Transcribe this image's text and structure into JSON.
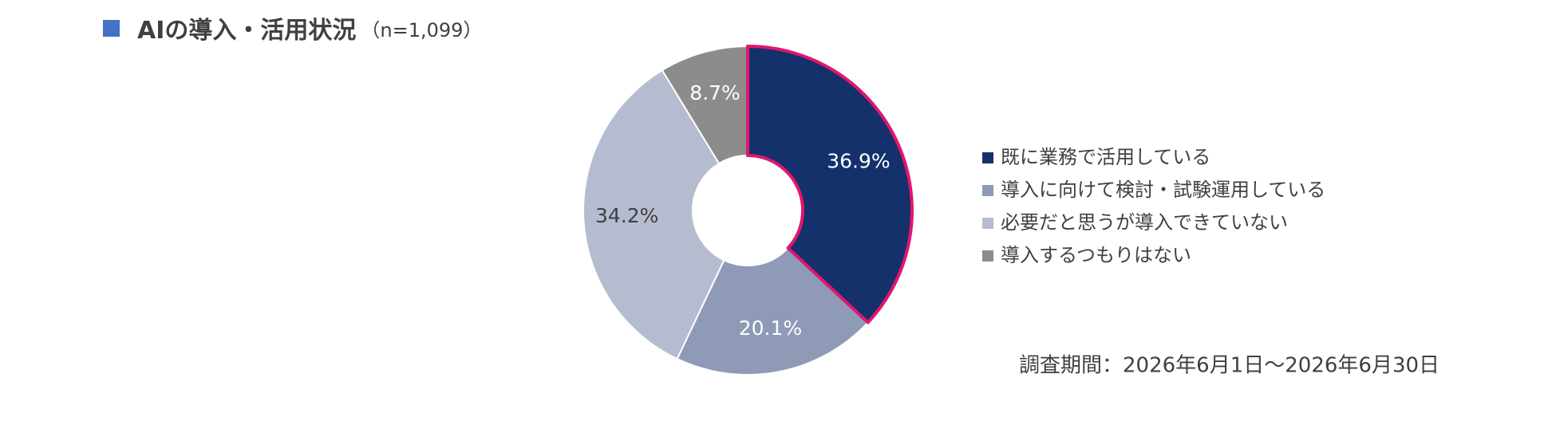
{
  "chart_data": {
    "type": "donut",
    "title": "AIの導入・活用状況",
    "subtitle": "（n=1,099）",
    "categories": [
      "既に業務で活用している",
      "導入に向けて検討・試験運用している",
      "必要だと思うが導入できていない",
      "導入するつもりはない"
    ],
    "values": [
      36.9,
      20.1,
      34.2,
      8.7
    ],
    "value_labels": [
      "36.9%",
      "20.1%",
      "34.2%",
      "8.7%"
    ],
    "colors": [
      "#14316b",
      "#8e9ab6",
      "#b6bcd0",
      "#8c8c8c"
    ],
    "highlight": 0,
    "highlight_color": "#e3156e",
    "title_marker_color": "#4472c4",
    "note": "調査期間：2026年6月1日～2026年6月30日"
  }
}
